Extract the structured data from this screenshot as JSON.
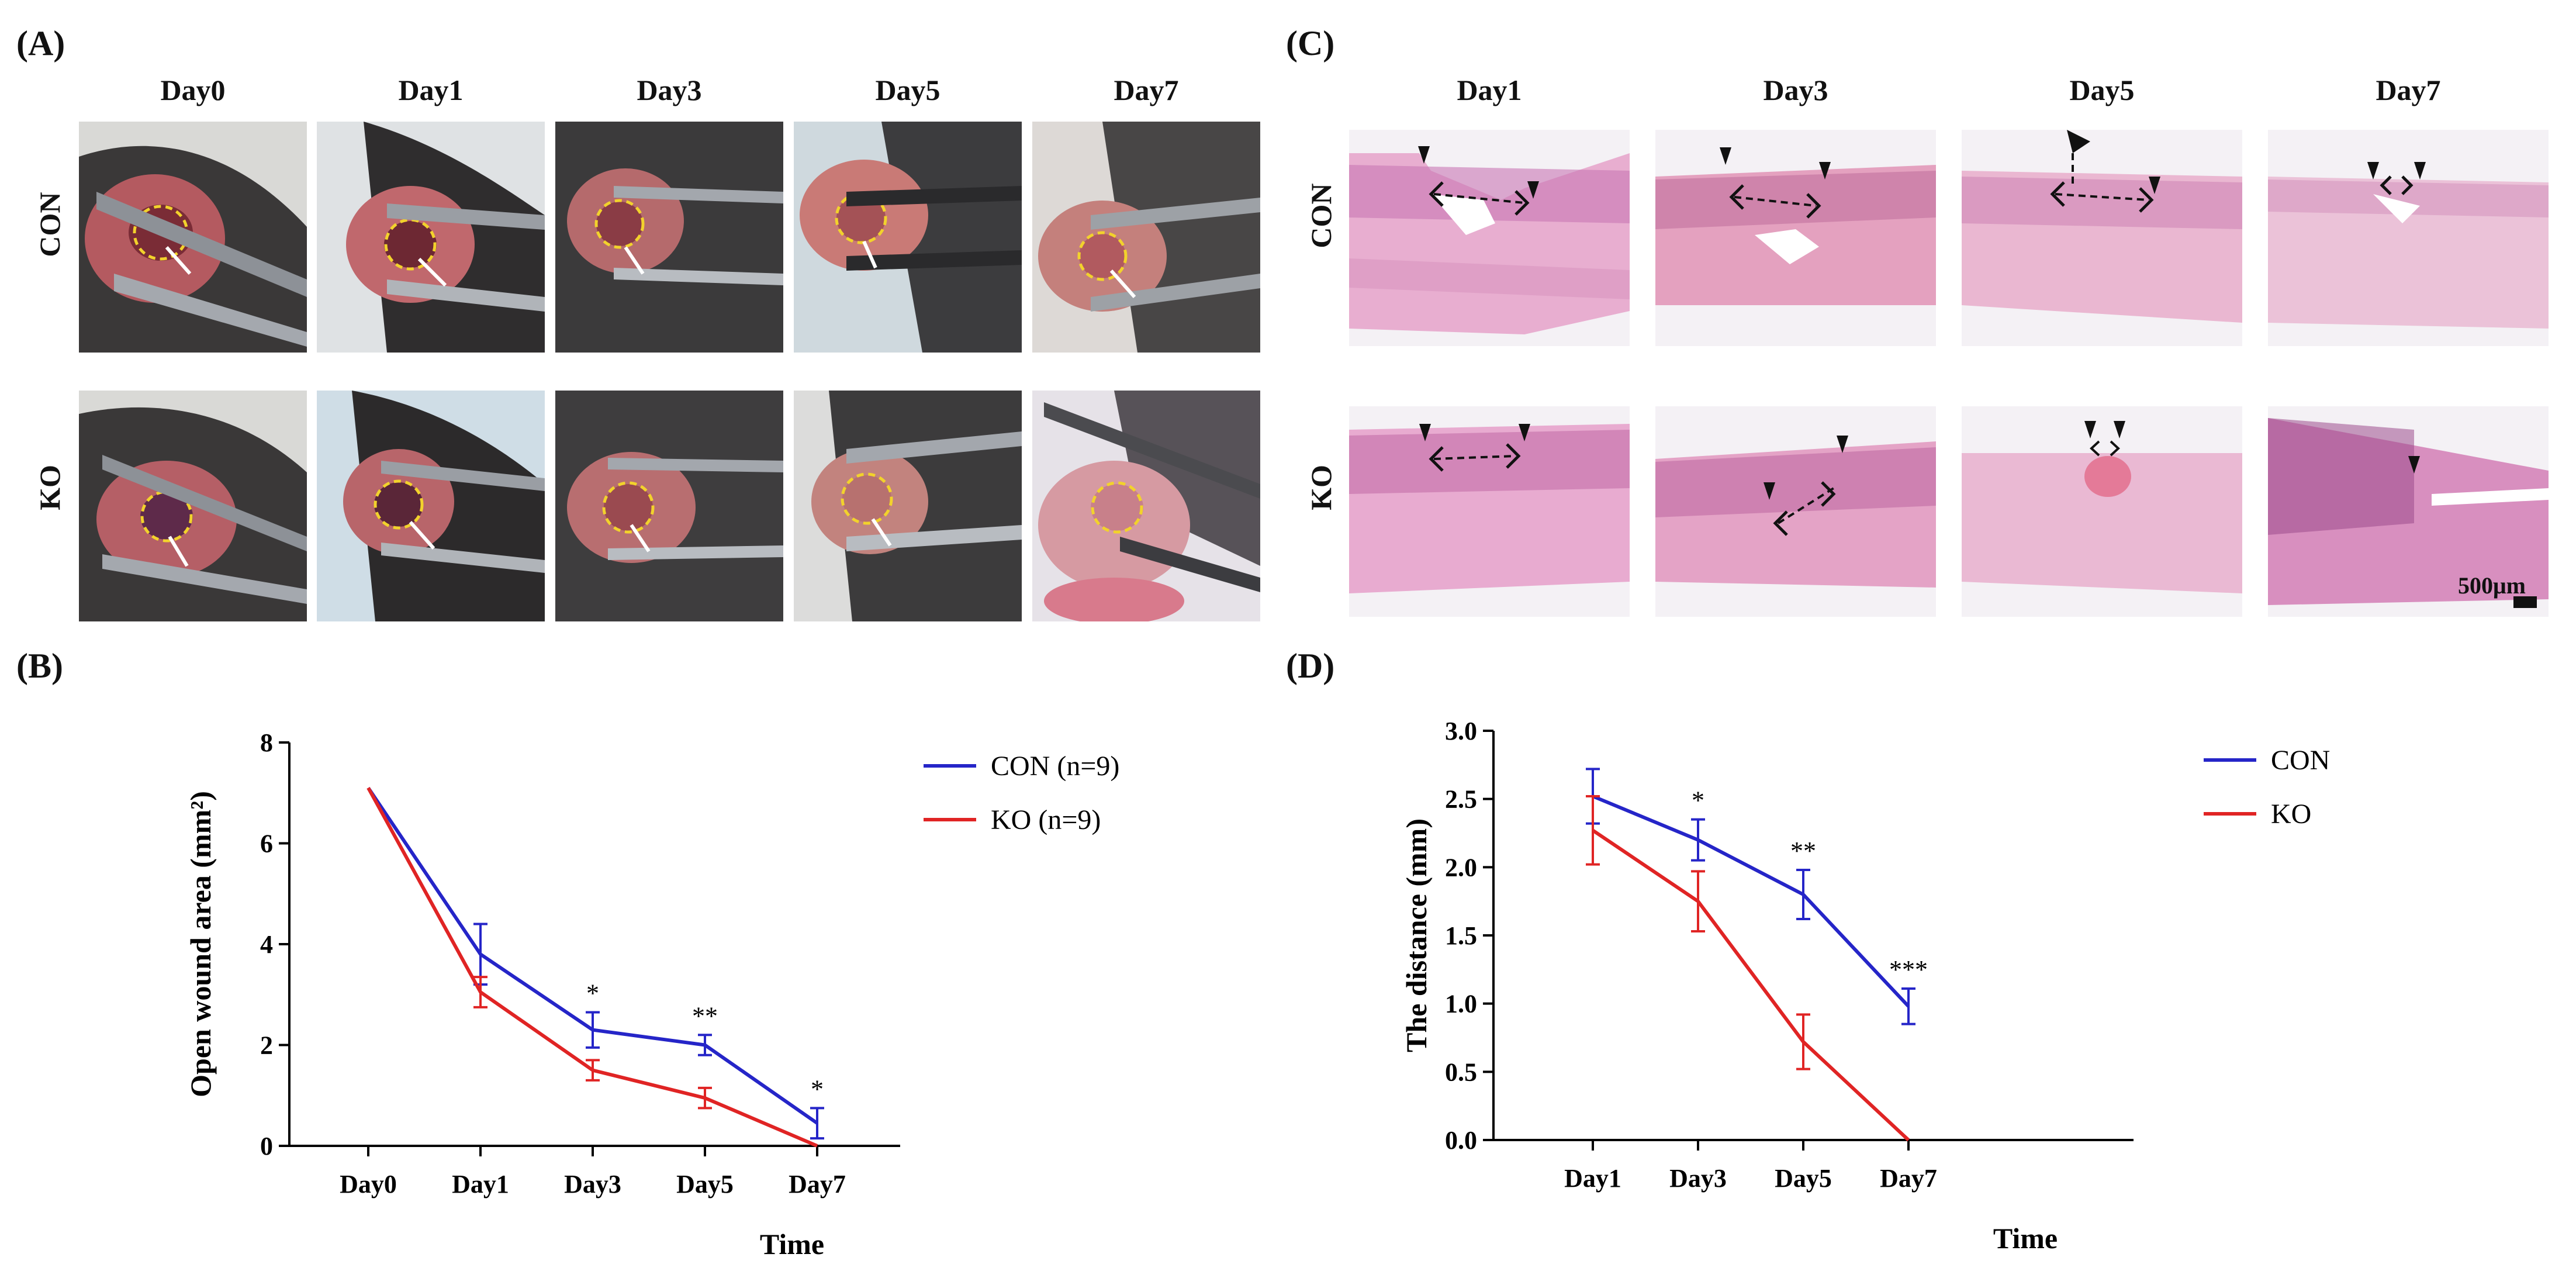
{
  "panels": {
    "A": {
      "letter": "(A)",
      "columns": [
        "Day0",
        "Day1",
        "Day3",
        "Day5",
        "Day7"
      ],
      "rows": [
        "CON",
        "KO"
      ]
    },
    "B": {
      "letter": "(B)"
    },
    "C": {
      "letter": "(C)",
      "columns": [
        "Day1",
        "Day3",
        "Day5",
        "Day7"
      ],
      "rows": [
        "CON",
        "KO"
      ],
      "scale_bar": "500μm"
    },
    "D": {
      "letter": "(D)"
    }
  },
  "colors": {
    "con": "#2525c8",
    "ko": "#e02424"
  },
  "chart_data": [
    {
      "id": "B",
      "type": "line",
      "xlabel": "Time",
      "ylabel": "Open wound area (mm²)",
      "categories": [
        "Day0",
        "Day1",
        "Day3",
        "Day5",
        "Day7"
      ],
      "ylim": [
        0,
        8
      ],
      "yticks": [
        "0",
        "2",
        "4",
        "6",
        "8"
      ],
      "legend": [
        "CON (n=9)",
        "KO    (n=9)"
      ],
      "series": [
        {
          "name": "CON (n=9)",
          "values": [
            7.1,
            3.8,
            2.3,
            2.0,
            0.45
          ],
          "errors": [
            0,
            0.6,
            0.35,
            0.2,
            0.3
          ]
        },
        {
          "name": "KO (n=9)",
          "values": [
            7.1,
            3.05,
            1.5,
            0.95,
            0.0
          ],
          "errors": [
            0,
            0.3,
            0.2,
            0.2,
            0
          ]
        }
      ],
      "annotations": [
        {
          "category": "Day3",
          "text": "*"
        },
        {
          "category": "Day5",
          "text": "**"
        },
        {
          "category": "Day7",
          "text": "*"
        }
      ]
    },
    {
      "id": "D",
      "type": "line",
      "xlabel": "Time",
      "ylabel": "The distance  (mm)",
      "categories": [
        "Day1",
        "Day3",
        "Day5",
        "Day7"
      ],
      "ylim": [
        0,
        3.0
      ],
      "yticks": [
        "0.0",
        "0.5",
        "1.0",
        "1.5",
        "2.0",
        "2.5",
        "3.0"
      ],
      "legend": [
        "CON",
        "KO"
      ],
      "series": [
        {
          "name": "CON",
          "values": [
            2.52,
            2.2,
            1.8,
            0.98
          ],
          "errors": [
            0.2,
            0.15,
            0.18,
            0.13
          ]
        },
        {
          "name": "KO",
          "values": [
            2.27,
            1.75,
            0.72,
            0.0
          ],
          "errors": [
            0.25,
            0.22,
            0.2,
            0
          ]
        }
      ],
      "annotations": [
        {
          "category": "Day3",
          "text": "*"
        },
        {
          "category": "Day5",
          "text": "**"
        },
        {
          "category": "Day7",
          "text": "***"
        }
      ]
    }
  ]
}
